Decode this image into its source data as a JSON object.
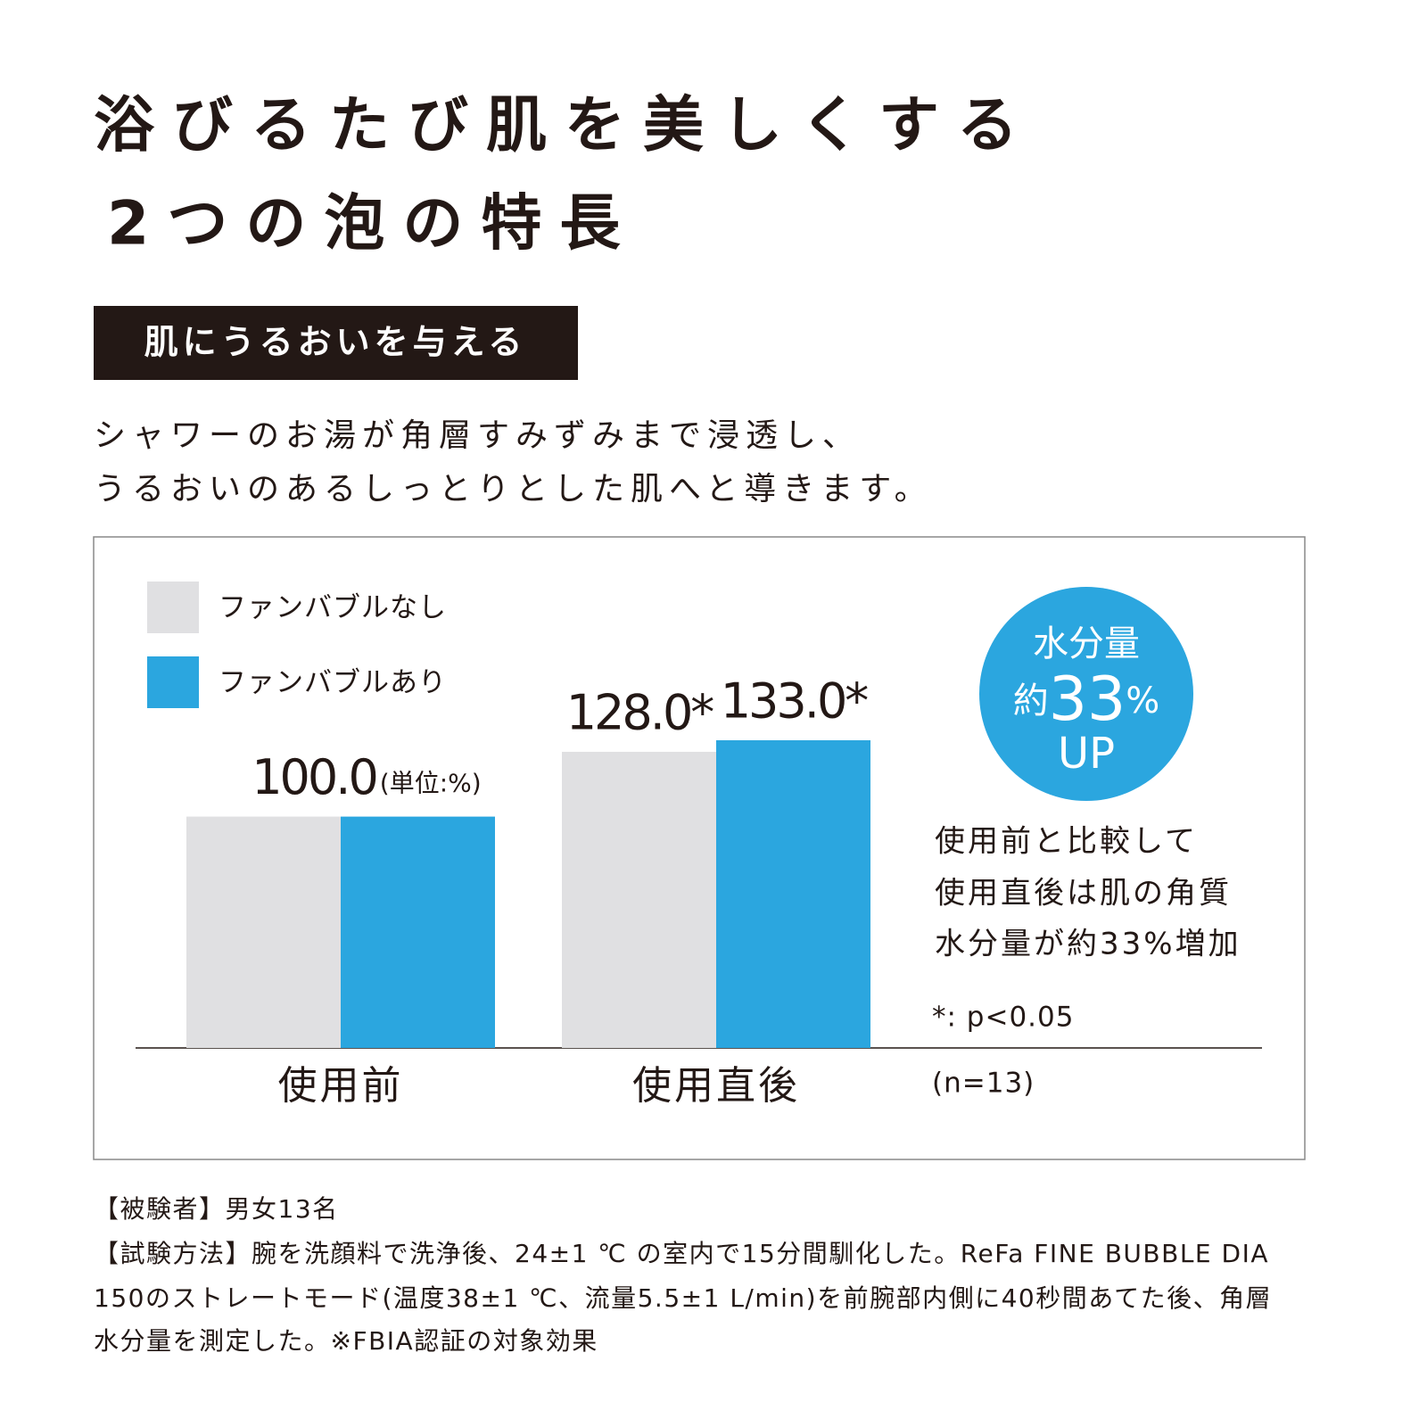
{
  "title": [
    "浴びるたび肌を美しくする",
    "2つの泡の特長"
  ],
  "badge": "肌にうるおいを与える",
  "description": [
    "シャワーのお湯が角層すみずみまで浸透し、",
    "うるおいのあるしっとりとした肌へと導きます。"
  ],
  "chart_data": {
    "type": "bar",
    "unit_label": "(単位:%)",
    "categories": [
      "使用前",
      "使用直後"
    ],
    "series": [
      {
        "name": "ファンバブルなし",
        "color": "#e0e0e2",
        "values": [
          100.0,
          128.0
        ],
        "value_labels": [
          "100.0",
          "128.0*"
        ]
      },
      {
        "name": "ファンバブルあり",
        "color": "#2ba6df",
        "values": [
          100.0,
          133.0
        ],
        "value_labels": [
          null,
          "133.0*"
        ]
      }
    ],
    "badge_circle": {
      "line1": "水分量",
      "prefix": "約",
      "number": "33",
      "suffix": "%",
      "line3": "UP"
    },
    "summary": [
      "使用前と比較して",
      "使用直後は肌の角質",
      "水分量が約33%増加"
    ],
    "significance": "*: p<0.05",
    "sample": "(n=13)"
  },
  "footnotes": [
    "【被験者】男女13名",
    "【試験方法】腕を洗顔料で洗浄後、24±1 ℃ の室内で15分間馴化した。ReFa FINE BUBBLE DIA",
    "150のストレートモード(温度38±1 ℃、流量5.5±1 L/min)を前腕部内側に40秒間あてた後、角層",
    "水分量を測定した。※FBIA認証の対象効果"
  ]
}
